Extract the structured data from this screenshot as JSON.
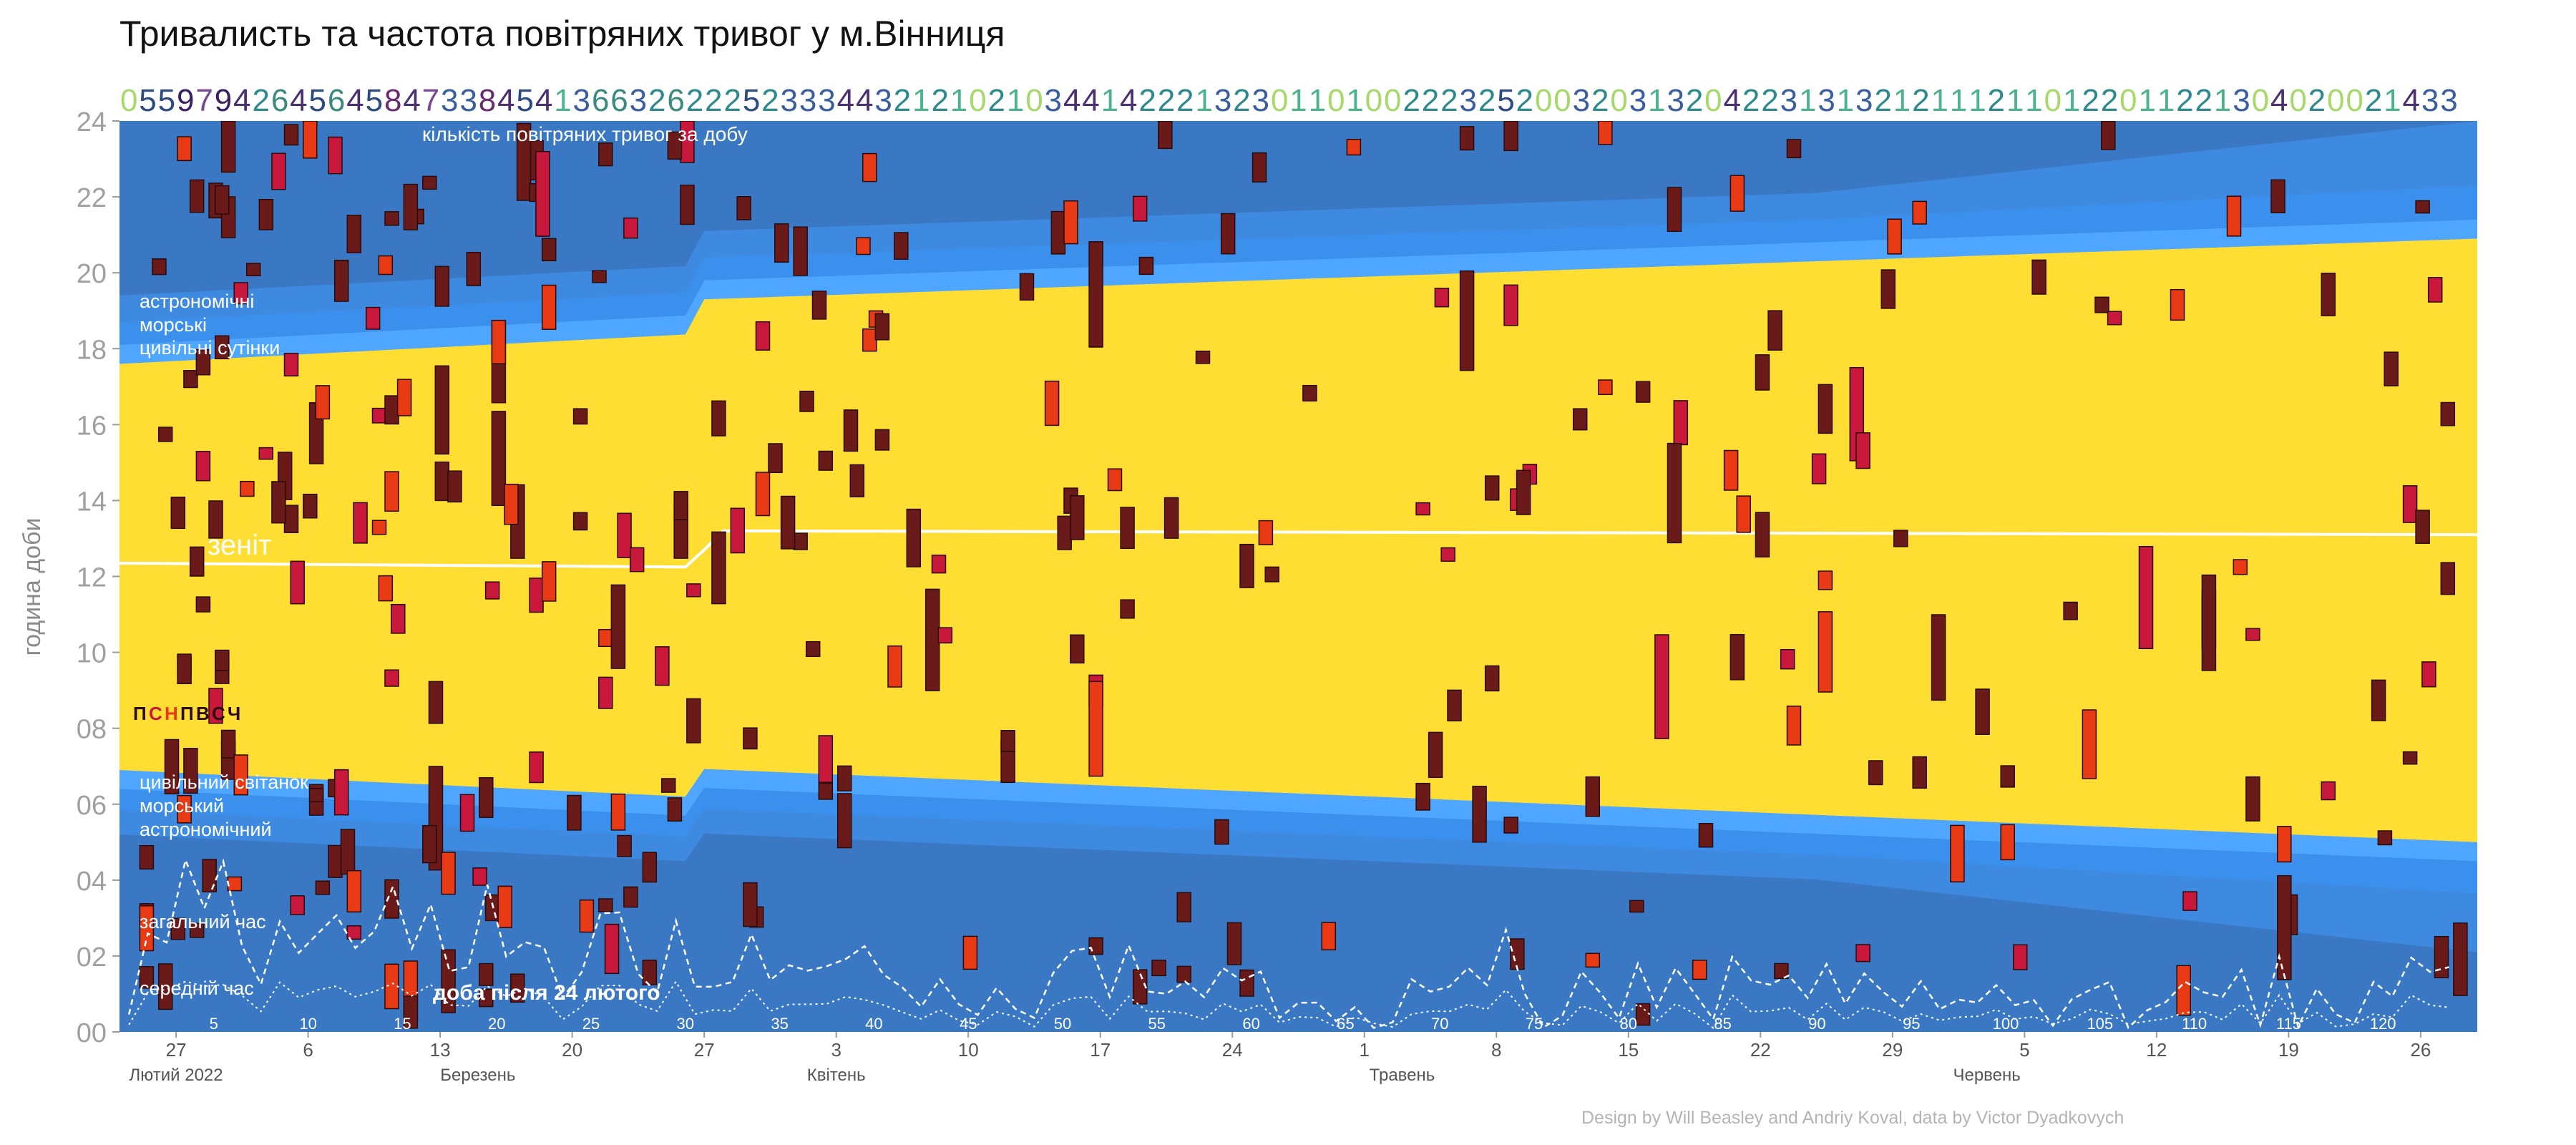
{
  "chart_data": {
    "type": "heatmap",
    "title": "Тривалисть та частота повітряних тривог у м.Вінниця",
    "ylabel": "година доби",
    "ylim": [
      0,
      24
    ],
    "y_ticks": [
      "00",
      "02",
      "04",
      "06",
      "08",
      "10",
      "12",
      "14",
      "16",
      "18",
      "20",
      "22",
      "24"
    ],
    "grid": false,
    "date_range": [
      "2022-02-24",
      "2022-06-28"
    ],
    "month_labels": [
      "Лютий 2022",
      "Березень",
      "Квітень",
      "Травень",
      "Червень"
    ],
    "day_ticks": [
      "27",
      "6",
      "13",
      "20",
      "27",
      "3",
      "10",
      "17",
      "24",
      "1",
      "8",
      "15",
      "22",
      "29",
      "5",
      "12",
      "19",
      "26"
    ],
    "day_number_ticks": [
      "5",
      "10",
      "15",
      "20",
      "25",
      "30",
      "35",
      "40",
      "45",
      "50",
      "55",
      "60",
      "65",
      "70",
      "75",
      "80",
      "85",
      "90",
      "95",
      "100",
      "105",
      "110",
      "115",
      "120"
    ],
    "daily_alert_counts": "0559794264564584733845413663262225233344321210210344142221323011010022232520032031320422313132121112110122011221304020021433",
    "daylight_labels": {
      "count_label": "кількість повітряних тривог за добу",
      "dusk": [
        "астрономічні",
        "морські",
        "цивільні сутінки"
      ],
      "dawn": [
        "цивільний світанок",
        "морський",
        "астрономічний"
      ],
      "zenith": "зеніт",
      "total_time": "загальний час",
      "mean_time": "середній час",
      "days_after": "доба після 24 лютого"
    },
    "weekday_legend": [
      "П",
      "С",
      "Н",
      "П",
      "В",
      "С",
      "Ч"
    ],
    "colors": {
      "night": "#3a78c4",
      "astronomical": "#3e8ae0",
      "nautical": "#3b90ee",
      "civil": "#4ea6ff",
      "day": "#ffde34",
      "alert_dark": "#6b1a1a",
      "alert_red": "#e83a14",
      "alert_crimson": "#c8183c",
      "zenith_line": "#ffffff"
    }
  },
  "credit": "Design by Will Beasley and Andriy Koval, data by Victor Dyadkovych"
}
